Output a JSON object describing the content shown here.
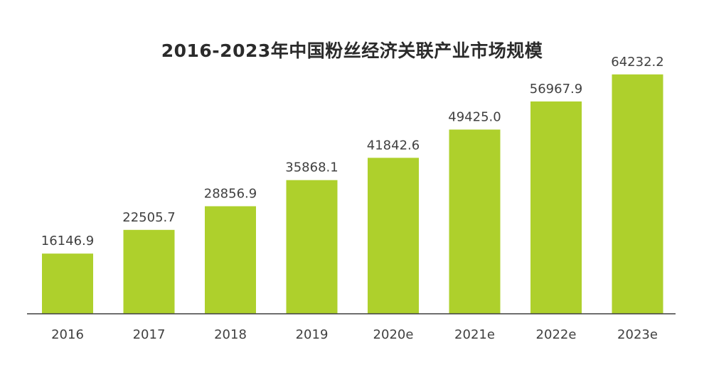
{
  "chart_data": {
    "type": "bar",
    "title": "2016-2023年中国粉丝经济关联产业市场规模",
    "categories": [
      "2016",
      "2017",
      "2018",
      "2019",
      "2020e",
      "2021e",
      "2022e",
      "2023e"
    ],
    "values": [
      16146.9,
      22505.7,
      28856.9,
      35868.1,
      41842.6,
      49425.0,
      56967.9,
      64232.2
    ],
    "value_labels": [
      "16146.9",
      "22505.7",
      "28856.9",
      "35868.1",
      "41842.6",
      "49425.0",
      "56967.9",
      "64232.2"
    ],
    "xlabel": "",
    "ylabel": "",
    "ylim": [
      0,
      80000
    ],
    "grid": false,
    "legend": "none",
    "bar_color": "#aed02c"
  }
}
